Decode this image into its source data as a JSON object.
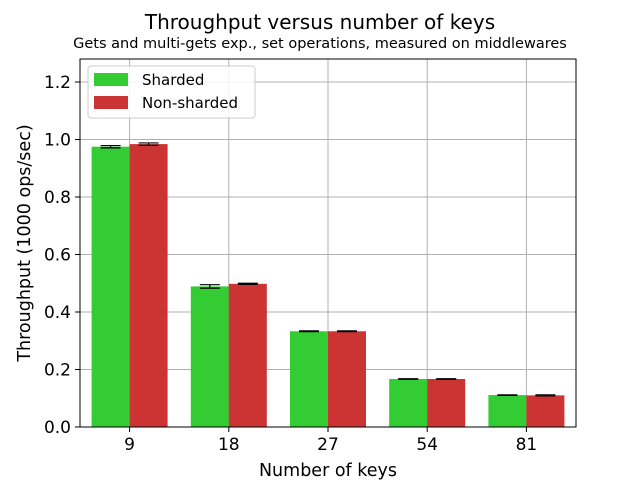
{
  "chart_data": {
    "type": "bar",
    "title": "Throughput versus number of keys",
    "subtitle": "Gets and multi-gets exp., set operations, measured on middlewares",
    "xlabel": "Number of keys",
    "ylabel": "Throughput (1000 ops/sec)",
    "categories": [
      "9",
      "18",
      "27",
      "54",
      "81"
    ],
    "ylim": [
      0,
      1.28
    ],
    "yticks": [
      0.0,
      0.2,
      0.4,
      0.6,
      0.8,
      1.0,
      1.2
    ],
    "ytick_labels": [
      "0.0",
      "0.2",
      "0.4",
      "0.6",
      "0.8",
      "1.0",
      "1.2"
    ],
    "grid": true,
    "legend_position": "top-left",
    "series": [
      {
        "name": "Sharded",
        "color": "#33cc33",
        "values": [
          0.975,
          0.489,
          0.333,
          0.167,
          0.111
        ],
        "errors": [
          0.004,
          0.006,
          0.0015,
          0.001,
          0.001
        ]
      },
      {
        "name": "Non-sharded",
        "color": "#cc3333",
        "values": [
          0.984,
          0.498,
          0.333,
          0.167,
          0.11
        ],
        "errors": [
          0.004,
          0.002,
          0.0015,
          0.001,
          0.002
        ]
      }
    ]
  }
}
